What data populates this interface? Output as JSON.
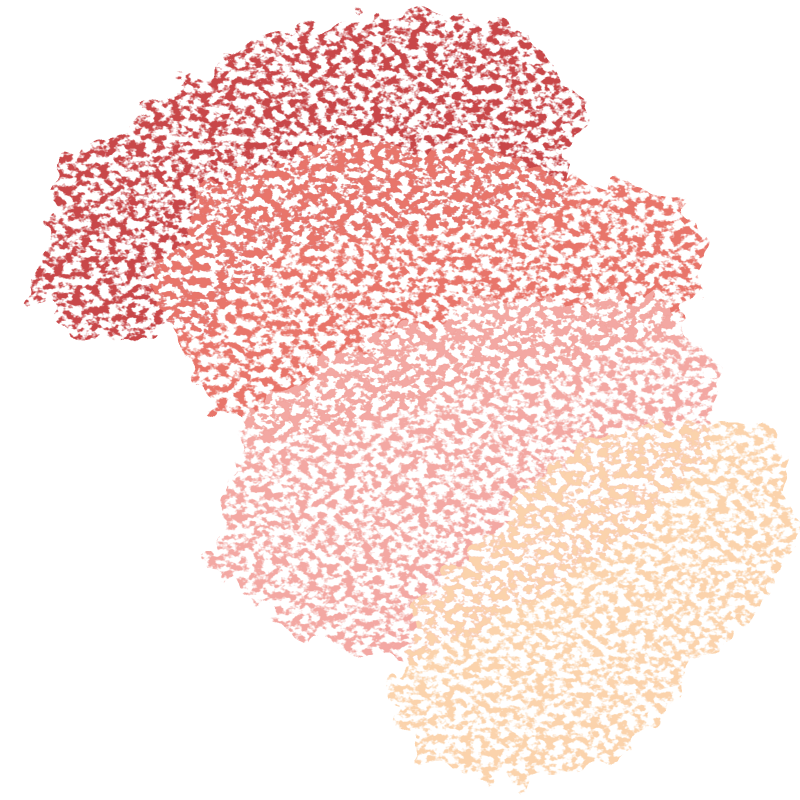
{
  "swatches": [
    {
      "color": "#c8474a"
    },
    {
      "color": "#e8746a"
    },
    {
      "color": "#f3a8a3"
    },
    {
      "color": "#fbd3ac"
    }
  ]
}
